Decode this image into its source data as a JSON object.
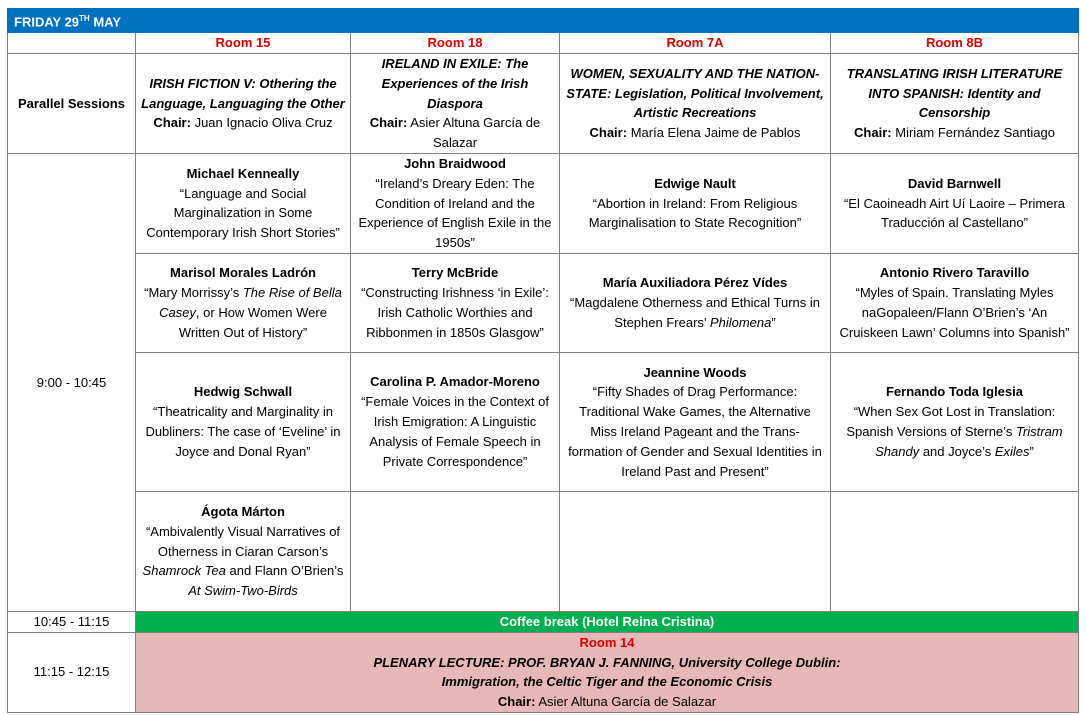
{
  "header": {
    "day": "FRIDAY 29",
    "sup": "TH",
    "month": "MAY"
  },
  "rooms": [
    "Room 15",
    "Room 18",
    "Room 7A",
    "Room 8B"
  ],
  "parallel_label": "Parallel Sessions",
  "sessions": [
    {
      "title": "IRISH FICTION V: Othering the Language, Languaging  the Other",
      "chair_label": "Chair:",
      "chair": "Juan Ignacio Oliva Cruz"
    },
    {
      "title": "IRELAND IN EXILE: The Experiences of the Irish Diaspora",
      "chair_label": "Chair:",
      "chair": "Asier Altuna García de Salazar"
    },
    {
      "title": "WOMEN, SEXUALITY AND THE NATION-STATE: Legislation, Political Involvement, Artistic Recreations",
      "chair_label": "Chair:",
      "chair": "María Elena Jaime de Pablos"
    },
    {
      "title": "TRANSLATING IRISH LITERATURE INTO SPANISH: Identity and Censorship",
      "chair_label": "Chair:",
      "chair": "Miriam Fernández Santiago"
    }
  ],
  "time_sessions": "9:00 - 10:45",
  "talks": [
    [
      {
        "speaker": "Michael Kenneally",
        "title": [
          {
            "t": "“Language and Social Marginalization in Some Contemporary Irish Short Stories”"
          }
        ]
      },
      {
        "speaker": "John Braidwood",
        "title": [
          {
            "t": "“Ireland’s Dreary Eden: The Condition of Ireland and the Experience of English Exile in the 1950s”"
          }
        ]
      },
      {
        "speaker": "Edwige Nault",
        "title": [
          {
            "t": "“Abortion in Ireland: From Religious Marginalisation to State Recognition”"
          }
        ]
      },
      {
        "speaker": "David Barnwell",
        "title": [
          {
            "t": "“El Caoineadh Airt Uí Laoire – Primera Traducción al Castellano”"
          }
        ]
      }
    ],
    [
      {
        "speaker": "Marisol Morales Ladrón",
        "title": [
          {
            "t": "“Mary Morrissy’s "
          },
          {
            "t": "The Rise of Bella Casey",
            "i": true
          },
          {
            "t": ", or How Women Were Written Out of History”"
          }
        ]
      },
      {
        "speaker": "Terry McBride",
        "title": [
          {
            "t": "“Constructing Irishness ‘in Exile’: Irish Catholic Worthies and Ribbonmen in 1850s Glasgow”"
          }
        ]
      },
      {
        "speaker": "María Auxiliadora Pérez Vídes",
        "title": [
          {
            "t": "“Magdalene Otherness and Ethical Turns in Stephen Frears’ "
          },
          {
            "t": "Philomena",
            "i": true
          },
          {
            "t": "”"
          }
        ]
      },
      {
        "speaker": "Antonio Rivero Taravillo",
        "title": [
          {
            "t": "“Myles of Spain. Translating Myles naGopaleen/Flann O’Brien’s ‘An Cruiskeen Lawn’ Columns into Spanish”"
          }
        ]
      }
    ],
    [
      {
        "speaker": "Hedwig Schwall",
        "title": [
          {
            "t": "“Theatricality and Marginality in Dubliners: The case of ‘Eveline’ in Joyce and Donal Ryan”"
          }
        ]
      },
      {
        "speaker": "Carolina P. Amador-Moreno",
        "title": [
          {
            "t": "“Female Voices in the Context of Irish Emigration: A Linguistic Analysis of Female Speech in Private Correspondence”"
          }
        ]
      },
      {
        "speaker": "Jeannine Woods",
        "title": [
          {
            "t": "“Fifty Shades of Drag Performance: Traditional Wake Games, the Alternative Miss Ireland Pageant and the Trans-formation of Gender and Sexual Identities in Ireland Past and Present”"
          }
        ]
      },
      {
        "speaker": "Fernando Toda Iglesia",
        "title": [
          {
            "t": "“When Sex Got Lost in Translation: Spanish Versions of Sterne’s "
          },
          {
            "t": "Tristram Shandy",
            "i": true
          },
          {
            "t": " and Joyce’s "
          },
          {
            "t": "Exiles",
            "i": true
          },
          {
            "t": "”"
          }
        ]
      }
    ],
    [
      {
        "speaker": "Ágota Márton",
        "title": [
          {
            "t": "“Ambivalently Visual Narratives of Otherness in Ciaran Carson’s "
          },
          {
            "t": "Shamrock Tea",
            "i": true
          },
          {
            "t": " and Flann O’Brien’s "
          },
          {
            "t": "At Swim-Two-Birds",
            "i": true
          }
        ]
      },
      null,
      null,
      null
    ]
  ],
  "coffee": {
    "time": "10:45 - 11:15",
    "label": "Coffee break (Hotel Reina Cristina)"
  },
  "plenary": {
    "time": "11:15 - 12:15",
    "room": "Room 14",
    "title": "PLENARY LECTURE: PROF. BRYAN J. FANNING, University College Dublin:",
    "subtitle": "Immigration, the Celtic Tiger and the Economic Crisis",
    "chair_label": "Chair:",
    "chair": "Asier Altuna García de Salazar"
  },
  "colors": {
    "header": "#0070c0",
    "room": "#e00000",
    "coffee": "#00b050",
    "plenary": "#e6b8b7"
  }
}
